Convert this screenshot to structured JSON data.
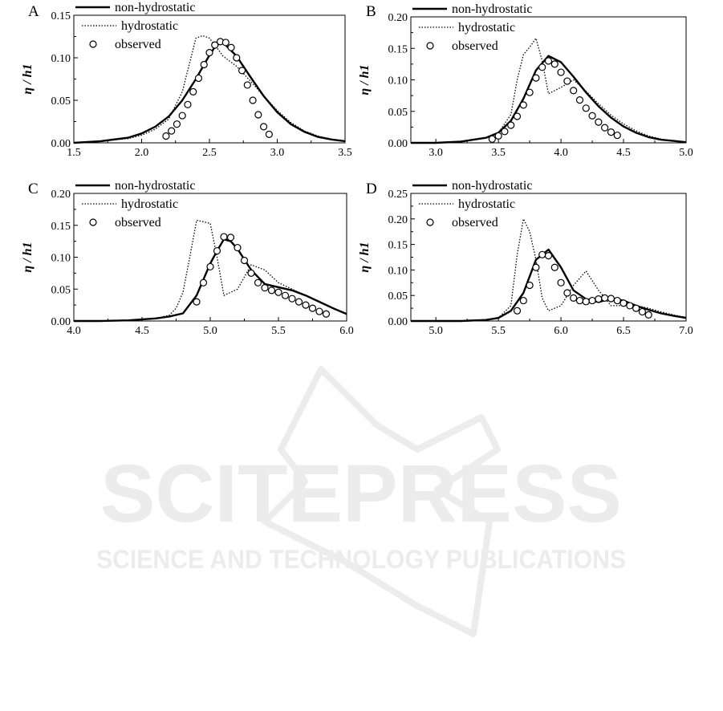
{
  "watermark": {
    "title": "SCITEPRESS",
    "subtitle": "SCIENCE AND TECHNOLOGY PUBLICATIONS"
  },
  "chart_data": [
    {
      "type": "line",
      "panel_label": "A",
      "ylabel": "η / h1",
      "xlim": [
        1.5,
        3.5
      ],
      "ylim": [
        0.0,
        0.15
      ],
      "xticks": [
        "1.5",
        "2.0",
        "2.5",
        "3.0",
        "3.5"
      ],
      "yticks": [
        "0.00",
        "0.05",
        "0.10",
        "0.15"
      ],
      "legend": [
        "non-hydrostatic",
        "hydrostatic",
        "observed"
      ],
      "series": [
        {
          "name": "non-hydrostatic",
          "style": "solid",
          "x": [
            1.5,
            1.7,
            1.9,
            2.0,
            2.1,
            2.2,
            2.3,
            2.4,
            2.5,
            2.55,
            2.6,
            2.7,
            2.8,
            2.9,
            3.0,
            3.1,
            3.2,
            3.3,
            3.4,
            3.5
          ],
          "y": [
            0.0,
            0.002,
            0.006,
            0.011,
            0.019,
            0.031,
            0.05,
            0.075,
            0.103,
            0.115,
            0.118,
            0.102,
            0.078,
            0.055,
            0.036,
            0.022,
            0.013,
            0.007,
            0.004,
            0.002
          ]
        },
        {
          "name": "hydrostatic",
          "style": "dotted",
          "x": [
            1.5,
            1.7,
            1.9,
            2.0,
            2.1,
            2.2,
            2.3,
            2.4,
            2.45,
            2.5,
            2.55,
            2.6,
            2.7,
            2.8,
            2.9,
            3.0,
            3.1,
            3.2,
            3.3,
            3.4,
            3.5
          ],
          "y": [
            0.0,
            0.002,
            0.005,
            0.009,
            0.016,
            0.028,
            0.06,
            0.123,
            0.126,
            0.123,
            0.113,
            0.102,
            0.09,
            0.073,
            0.055,
            0.038,
            0.024,
            0.014,
            0.008,
            0.004,
            0.002
          ]
        },
        {
          "name": "observed",
          "style": "marker",
          "x": [
            2.18,
            2.22,
            2.26,
            2.3,
            2.34,
            2.38,
            2.42,
            2.46,
            2.5,
            2.54,
            2.58,
            2.62,
            2.66,
            2.7,
            2.74,
            2.78,
            2.82,
            2.86,
            2.9,
            2.94
          ],
          "y": [
            0.008,
            0.014,
            0.022,
            0.032,
            0.045,
            0.06,
            0.076,
            0.092,
            0.106,
            0.115,
            0.119,
            0.118,
            0.112,
            0.1,
            0.085,
            0.068,
            0.05,
            0.033,
            0.019,
            0.01
          ]
        }
      ]
    },
    {
      "type": "line",
      "panel_label": "B",
      "ylabel": "η / h1",
      "xlim": [
        2.8,
        5.0
      ],
      "ylim": [
        0.0,
        0.2
      ],
      "xticks": [
        "3.0",
        "3.5",
        "4.0",
        "4.5",
        "5.0"
      ],
      "yticks": [
        "0.00",
        "0.05",
        "0.10",
        "0.15",
        "0.20"
      ],
      "legend": [
        "non-hydrostatic",
        "hydrostatic",
        "observed"
      ],
      "series": [
        {
          "name": "non-hydrostatic",
          "style": "solid",
          "x": [
            2.8,
            3.0,
            3.2,
            3.4,
            3.5,
            3.6,
            3.7,
            3.8,
            3.9,
            4.0,
            4.1,
            4.2,
            4.3,
            4.4,
            4.5,
            4.6,
            4.7,
            4.8,
            4.9,
            5.0
          ],
          "y": [
            0.0,
            0.0,
            0.002,
            0.008,
            0.016,
            0.035,
            0.07,
            0.115,
            0.138,
            0.128,
            0.105,
            0.08,
            0.058,
            0.04,
            0.026,
            0.016,
            0.009,
            0.005,
            0.003,
            0.001
          ]
        },
        {
          "name": "hydrostatic",
          "style": "dotted",
          "x": [
            2.8,
            3.0,
            3.2,
            3.4,
            3.5,
            3.6,
            3.65,
            3.7,
            3.75,
            3.8,
            3.85,
            3.9,
            4.0,
            4.1,
            4.2,
            4.3,
            4.4,
            4.5,
            4.6,
            4.7,
            4.8,
            4.9,
            5.0
          ],
          "y": [
            0.0,
            0.0,
            0.002,
            0.008,
            0.016,
            0.045,
            0.1,
            0.14,
            0.152,
            0.166,
            0.13,
            0.078,
            0.088,
            0.1,
            0.082,
            0.062,
            0.044,
            0.03,
            0.019,
            0.011,
            0.006,
            0.003,
            0.001
          ]
        },
        {
          "name": "observed",
          "style": "marker",
          "x": [
            3.45,
            3.5,
            3.55,
            3.6,
            3.65,
            3.7,
            3.75,
            3.8,
            3.85,
            3.9,
            3.95,
            4.0,
            4.05,
            4.1,
            4.15,
            4.2,
            4.25,
            4.3,
            4.35,
            4.4,
            4.45
          ],
          "y": [
            0.006,
            0.011,
            0.018,
            0.028,
            0.042,
            0.06,
            0.08,
            0.103,
            0.12,
            0.13,
            0.125,
            0.112,
            0.098,
            0.083,
            0.068,
            0.055,
            0.043,
            0.033,
            0.024,
            0.017,
            0.012
          ]
        }
      ]
    },
    {
      "type": "line",
      "panel_label": "C",
      "ylabel": "η / h1",
      "xlim": [
        4.0,
        6.0
      ],
      "ylim": [
        0.0,
        0.2
      ],
      "xticks": [
        "4.0",
        "4.5",
        "5.0",
        "5.5",
        "6.0"
      ],
      "yticks": [
        "0.00",
        "0.05",
        "0.10",
        "0.15",
        "0.20"
      ],
      "legend": [
        "non-hydrostatic",
        "hydrostatic",
        "observed"
      ],
      "series": [
        {
          "name": "non-hydrostatic",
          "style": "solid",
          "x": [
            4.0,
            4.2,
            4.4,
            4.6,
            4.7,
            4.8,
            4.9,
            5.0,
            5.05,
            5.1,
            5.15,
            5.2,
            5.3,
            5.4,
            5.5,
            5.6,
            5.7,
            5.8,
            5.9,
            6.0
          ],
          "y": [
            0.0,
            0.0,
            0.001,
            0.004,
            0.007,
            0.012,
            0.04,
            0.09,
            0.11,
            0.128,
            0.125,
            0.113,
            0.08,
            0.058,
            0.053,
            0.048,
            0.04,
            0.03,
            0.02,
            0.011
          ]
        },
        {
          "name": "hydrostatic",
          "style": "dotted",
          "x": [
            4.0,
            4.2,
            4.4,
            4.6,
            4.7,
            4.75,
            4.8,
            4.85,
            4.9,
            5.0,
            5.05,
            5.1,
            5.2,
            5.3,
            5.4,
            5.5,
            5.6,
            5.7,
            5.8,
            5.9,
            6.0
          ],
          "y": [
            0.0,
            0.0,
            0.001,
            0.004,
            0.009,
            0.02,
            0.045,
            0.1,
            0.158,
            0.153,
            0.1,
            0.04,
            0.05,
            0.088,
            0.08,
            0.06,
            0.05,
            0.04,
            0.03,
            0.02,
            0.012
          ]
        },
        {
          "name": "observed",
          "style": "marker",
          "x": [
            4.9,
            4.95,
            5.0,
            5.05,
            5.1,
            5.15,
            5.2,
            5.25,
            5.3,
            5.35,
            5.4,
            5.45,
            5.5,
            5.55,
            5.6,
            5.65,
            5.7,
            5.75,
            5.8,
            5.85
          ],
          "y": [
            0.03,
            0.06,
            0.085,
            0.11,
            0.132,
            0.131,
            0.115,
            0.095,
            0.075,
            0.06,
            0.052,
            0.048,
            0.045,
            0.04,
            0.035,
            0.03,
            0.025,
            0.02,
            0.015,
            0.011
          ]
        }
      ]
    },
    {
      "type": "line",
      "panel_label": "D",
      "ylabel": "η / h1",
      "xlim": [
        4.8,
        7.0
      ],
      "ylim": [
        0.0,
        0.25
      ],
      "xticks": [
        "5.0",
        "5.5",
        "6.0",
        "6.5",
        "7.0"
      ],
      "yticks": [
        "0.00",
        "0.05",
        "0.10",
        "0.15",
        "0.20",
        "0.25"
      ],
      "legend": [
        "non-hydrostatic",
        "hydrostatic",
        "observed"
      ],
      "series": [
        {
          "name": "non-hydrostatic",
          "style": "solid",
          "x": [
            4.8,
            5.0,
            5.2,
            5.4,
            5.5,
            5.6,
            5.7,
            5.8,
            5.9,
            6.0,
            6.1,
            6.2,
            6.3,
            6.4,
            6.5,
            6.6,
            6.7,
            6.8,
            6.9,
            7.0
          ],
          "y": [
            0.0,
            0.0,
            0.0,
            0.002,
            0.006,
            0.02,
            0.055,
            0.12,
            0.14,
            0.105,
            0.06,
            0.043,
            0.037,
            0.044,
            0.04,
            0.03,
            0.022,
            0.015,
            0.01,
            0.006
          ]
        },
        {
          "name": "hydrostatic",
          "style": "dotted",
          "x": [
            4.8,
            5.0,
            5.2,
            5.4,
            5.5,
            5.6,
            5.65,
            5.7,
            5.75,
            5.8,
            5.85,
            5.9,
            6.0,
            6.1,
            6.2,
            6.3,
            6.4,
            6.5,
            6.6,
            6.7,
            6.8,
            6.9,
            7.0
          ],
          "y": [
            0.0,
            0.0,
            0.0,
            0.002,
            0.006,
            0.03,
            0.13,
            0.2,
            0.175,
            0.12,
            0.045,
            0.02,
            0.03,
            0.07,
            0.098,
            0.06,
            0.03,
            0.03,
            0.03,
            0.025,
            0.018,
            0.012,
            0.007
          ]
        },
        {
          "name": "observed",
          "style": "marker",
          "x": [
            5.65,
            5.7,
            5.75,
            5.8,
            5.85,
            5.9,
            5.95,
            6.0,
            6.05,
            6.1,
            6.15,
            6.2,
            6.25,
            6.3,
            6.35,
            6.4,
            6.45,
            6.5,
            6.55,
            6.6,
            6.65,
            6.7
          ],
          "y": [
            0.02,
            0.04,
            0.07,
            0.105,
            0.13,
            0.128,
            0.105,
            0.075,
            0.055,
            0.045,
            0.04,
            0.038,
            0.04,
            0.043,
            0.045,
            0.044,
            0.04,
            0.035,
            0.03,
            0.025,
            0.018,
            0.012
          ]
        }
      ]
    }
  ]
}
